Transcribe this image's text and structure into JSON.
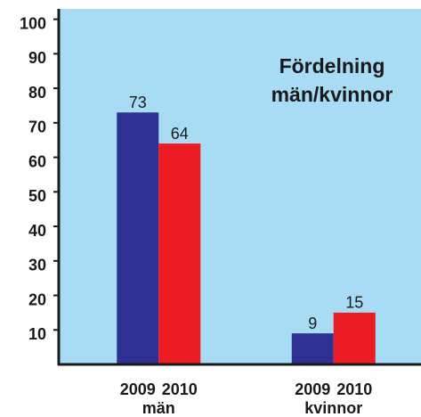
{
  "chart_data": {
    "type": "bar",
    "title": [
      "Fördelning",
      "män/kvinnor"
    ],
    "categories": [
      "män",
      "kvinnor"
    ],
    "series": [
      {
        "name": "2009",
        "color": "#2e3192",
        "values": [
          73,
          9
        ]
      },
      {
        "name": "2010",
        "color": "#ed1c24",
        "values": [
          64,
          15
        ]
      }
    ],
    "ylim": [
      0,
      103
    ],
    "yticks": [
      10,
      20,
      30,
      40,
      50,
      60,
      70,
      80,
      90,
      100
    ],
    "grid": false,
    "background": "#a8dcf5"
  }
}
